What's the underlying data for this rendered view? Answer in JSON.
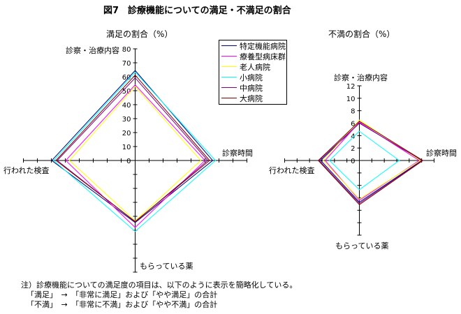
{
  "title": "図7　診療機能についての満足・不満足の割合",
  "notes": [
    "注）診療機能についての満足度の項目は、以下のように表示を簡略化している。",
    "「満足」　→　「非常に満足」および「やや満足」の合計",
    "「不満」　→　「非常に不満」および「やや不満」の合計"
  ],
  "chart_data": [
    {
      "type": "radar",
      "title": "満足の割合（%）",
      "axes": [
        "診察・治療内容",
        "診察時間",
        "もらっている薬",
        "行われた検査"
      ],
      "rlim": [
        0,
        80
      ],
      "ticks": [
        "0",
        "10",
        "20",
        "30",
        "40",
        "50",
        "60",
        "70",
        "80"
      ],
      "tick_step": 10,
      "series": [
        {
          "name": "特定機能病院",
          "color": "#000080",
          "values": [
            64.5,
            55.5,
            44.5,
            59.7
          ]
        },
        {
          "name": "療養型病床群",
          "color": "#ff00ff",
          "values": [
            54.2,
            50,
            48,
            49.7
          ]
        },
        {
          "name": "老人病院",
          "color": "#ffff00",
          "values": [
            53,
            47,
            43.3,
            47
          ]
        },
        {
          "name": "小病院",
          "color": "#00ffff",
          "values": [
            63.3,
            57.5,
            50.8,
            58.3
          ]
        },
        {
          "name": "中病院",
          "color": "#800080",
          "values": [
            59.2,
            52,
            44,
            55.8
          ]
        },
        {
          "name": "大病院",
          "color": "#800000",
          "values": [
            61.2,
            53.3,
            43.7,
            56.7
          ]
        }
      ]
    },
    {
      "type": "radar",
      "title": "不満の割合（%）",
      "axes": [
        "診察・治療内容",
        "診察時間",
        "もらっている薬",
        "行われた検査"
      ],
      "rlim": [
        0,
        12
      ],
      "ticks": [
        "0",
        "2",
        "4",
        "6",
        "8",
        "10",
        "12"
      ],
      "tick_step": 2,
      "series": [
        {
          "name": "特定機能病院",
          "color": "#000080",
          "values": [
            6.0,
            10.0,
            6.7,
            6.2
          ]
        },
        {
          "name": "療養型病床群",
          "color": "#ff00ff",
          "values": [
            6.15,
            9.6,
            6.4,
            5.5
          ]
        },
        {
          "name": "老人病院",
          "color": "#ffff00",
          "values": [
            6.5,
            9.8,
            6.2,
            5.8
          ]
        },
        {
          "name": "小病院",
          "color": "#00ffff",
          "values": [
            4.7,
            6.4,
            4.7,
            4.8
          ]
        },
        {
          "name": "中病院",
          "color": "#800080",
          "values": [
            6.0,
            10.1,
            6.9,
            6.45
          ]
        },
        {
          "name": "大病院",
          "color": "#800000",
          "values": [
            6.3,
            10.2,
            7.1,
            6.6
          ]
        }
      ]
    }
  ]
}
